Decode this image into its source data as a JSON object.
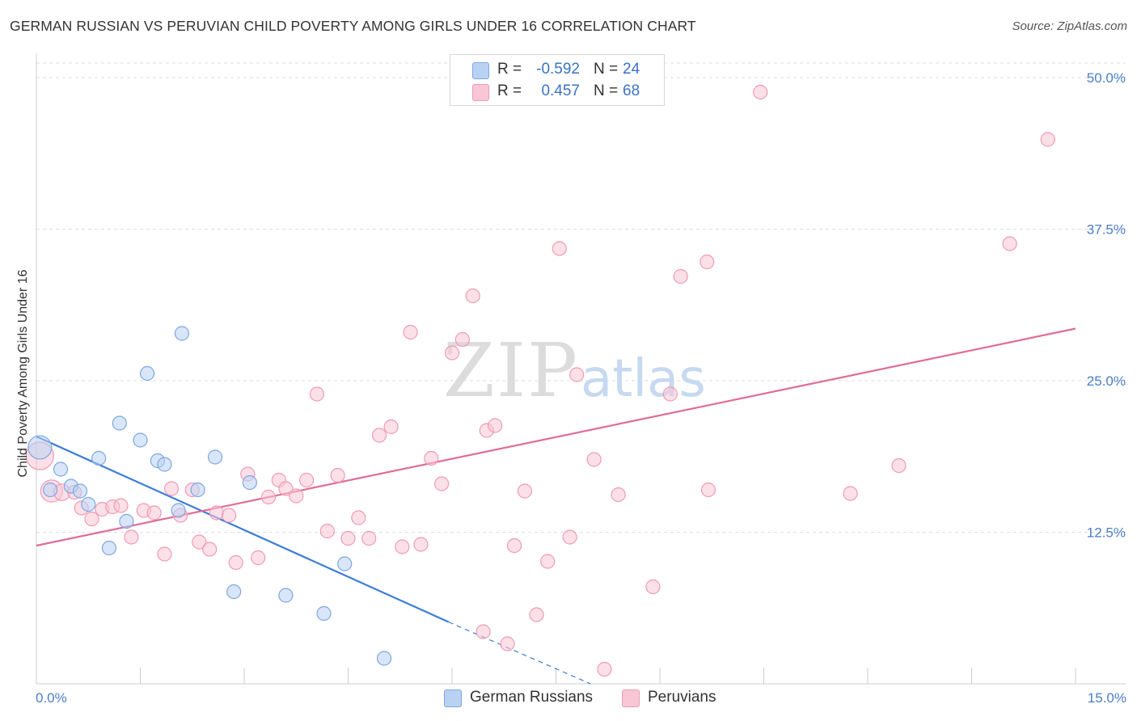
{
  "title": "GERMAN RUSSIAN VS PERUVIAN CHILD POVERTY AMONG GIRLS UNDER 16 CORRELATION CHART",
  "source": "Source: ZipAtlas.com",
  "watermark": {
    "zip": "ZIP",
    "atlas": "atlas"
  },
  "legend": {
    "rows": [
      {
        "r_label": "R =",
        "r_value": "-0.592",
        "n_label": "N =",
        "n_value": "24",
        "color": "#b9d2f4",
        "border": "#7ea7e0"
      },
      {
        "r_label": "R =",
        "r_value": "0.457",
        "n_label": "N =",
        "n_value": "68",
        "color": "#f9c6d6",
        "border": "#ee9ab5"
      }
    ]
  },
  "bottom_legend": [
    {
      "label": "German Russians",
      "color": "#b9d2f4",
      "border": "#7ea7e0"
    },
    {
      "label": "Peruvians",
      "color": "#f9c6d6",
      "border": "#ee9ab5"
    }
  ],
  "chart_data": {
    "type": "scatter",
    "title": "GERMAN RUSSIAN VS PERUVIAN CHILD POVERTY AMONG GIRLS UNDER 16 CORRELATION CHART",
    "xlabel": "",
    "ylabel": "Child Poverty Among Girls Under 16",
    "xlim": [
      0,
      15
    ],
    "ylim": [
      0,
      50
    ],
    "x_tick_labels": [
      "0.0%",
      "15.0%"
    ],
    "y_ticks": [
      12.5,
      25.0,
      37.5,
      50.0
    ],
    "y_tick_labels": [
      "12.5%",
      "25.0%",
      "37.5%",
      "50.0%"
    ],
    "grid": true,
    "legend_position": "top-center",
    "colors": {
      "german_russians": "#3b7dd8",
      "peruvians": "#e06c97"
    },
    "series": [
      {
        "name": "German Russians",
        "points": [
          [
            0.05,
            19.5,
            1.7
          ],
          [
            0.2,
            16.0,
            1.0
          ],
          [
            0.35,
            17.7,
            1.0
          ],
          [
            0.5,
            16.3,
            1.0
          ],
          [
            0.63,
            15.9,
            1.0
          ],
          [
            0.75,
            14.8,
            1.0
          ],
          [
            0.9,
            18.6,
            1.0
          ],
          [
            1.05,
            11.2,
            1.0
          ],
          [
            1.2,
            21.5,
            1.0
          ],
          [
            1.3,
            13.4,
            1.0
          ],
          [
            1.5,
            20.1,
            1.0
          ],
          [
            1.6,
            25.6,
            1.0
          ],
          [
            1.75,
            18.4,
            1.0
          ],
          [
            1.85,
            18.1,
            1.0
          ],
          [
            2.05,
            14.3,
            1.0
          ],
          [
            2.1,
            28.9,
            1.0
          ],
          [
            2.33,
            16.0,
            1.0
          ],
          [
            2.58,
            18.7,
            1.0
          ],
          [
            2.85,
            7.6,
            1.0
          ],
          [
            3.08,
            16.6,
            1.0
          ],
          [
            3.6,
            7.3,
            1.0
          ],
          [
            4.15,
            5.8,
            1.0
          ],
          [
            4.45,
            9.9,
            1.0
          ],
          [
            5.02,
            2.1,
            1.0
          ]
        ],
        "trend": {
          "x0": 0.0,
          "y0": 20.4,
          "x1": 5.95,
          "y1": 5.1,
          "dash_to_x": 8.0,
          "dash_to_y": 0.0
        }
      },
      {
        "name": "Peruvians",
        "points": [
          [
            0.05,
            18.8,
            2.0
          ],
          [
            0.22,
            15.9,
            1.6
          ],
          [
            0.37,
            15.8,
            1.2
          ],
          [
            0.55,
            15.8,
            1.0
          ],
          [
            0.65,
            14.5,
            1.0
          ],
          [
            0.8,
            13.6,
            1.0
          ],
          [
            0.95,
            14.4,
            1.0
          ],
          [
            1.1,
            14.6,
            1.0
          ],
          [
            1.22,
            14.7,
            1.0
          ],
          [
            1.37,
            12.1,
            1.0
          ],
          [
            1.55,
            14.3,
            1.0
          ],
          [
            1.7,
            14.1,
            1.0
          ],
          [
            1.85,
            10.7,
            1.0
          ],
          [
            1.95,
            16.1,
            1.0
          ],
          [
            2.08,
            13.9,
            1.0
          ],
          [
            2.25,
            16.0,
            1.0
          ],
          [
            2.35,
            11.7,
            1.0
          ],
          [
            2.5,
            11.1,
            1.0
          ],
          [
            2.6,
            14.1,
            1.0
          ],
          [
            2.78,
            13.9,
            1.0
          ],
          [
            2.88,
            10.0,
            1.0
          ],
          [
            3.05,
            17.3,
            1.0
          ],
          [
            3.2,
            10.4,
            1.0
          ],
          [
            3.35,
            15.4,
            1.0
          ],
          [
            3.5,
            16.8,
            1.0
          ],
          [
            3.6,
            16.1,
            1.0
          ],
          [
            3.75,
            15.5,
            1.0
          ],
          [
            3.9,
            16.8,
            1.0
          ],
          [
            4.05,
            23.9,
            1.0
          ],
          [
            4.2,
            12.6,
            1.0
          ],
          [
            4.35,
            17.2,
            1.0
          ],
          [
            4.5,
            12.0,
            1.0
          ],
          [
            4.65,
            13.7,
            1.0
          ],
          [
            4.8,
            12.0,
            1.0
          ],
          [
            4.95,
            20.5,
            1.0
          ],
          [
            5.12,
            21.2,
            1.0
          ],
          [
            5.28,
            11.3,
            1.0
          ],
          [
            5.4,
            29.0,
            1.0
          ],
          [
            5.55,
            11.5,
            1.0
          ],
          [
            5.7,
            18.6,
            1.0
          ],
          [
            5.85,
            16.5,
            1.0
          ],
          [
            6.0,
            27.3,
            1.0
          ],
          [
            6.15,
            28.4,
            1.0
          ],
          [
            6.3,
            32.0,
            1.0
          ],
          [
            6.45,
            4.3,
            1.0
          ],
          [
            6.5,
            20.9,
            1.0
          ],
          [
            6.62,
            21.3,
            1.0
          ],
          [
            6.8,
            3.3,
            1.0
          ],
          [
            6.9,
            11.4,
            1.0
          ],
          [
            7.05,
            15.9,
            1.0
          ],
          [
            7.22,
            5.7,
            1.0
          ],
          [
            7.38,
            10.1,
            1.0
          ],
          [
            7.55,
            35.9,
            1.0
          ],
          [
            7.7,
            12.1,
            1.0
          ],
          [
            7.8,
            25.5,
            1.0
          ],
          [
            8.05,
            18.5,
            1.0
          ],
          [
            8.2,
            1.2,
            1.0
          ],
          [
            8.4,
            15.6,
            1.0
          ],
          [
            8.9,
            8.0,
            1.0
          ],
          [
            9.15,
            23.9,
            1.0
          ],
          [
            9.3,
            33.6,
            1.0
          ],
          [
            9.68,
            34.8,
            1.0
          ],
          [
            9.7,
            16.0,
            1.0
          ],
          [
            10.45,
            48.8,
            1.0
          ],
          [
            11.75,
            15.7,
            1.0
          ],
          [
            12.45,
            18.0,
            1.0
          ],
          [
            14.05,
            36.3,
            1.0
          ],
          [
            14.6,
            44.9,
            1.0
          ]
        ],
        "trend": {
          "x0": 0.0,
          "y0": 11.4,
          "x1": 15.0,
          "y1": 29.3
        }
      }
    ]
  }
}
